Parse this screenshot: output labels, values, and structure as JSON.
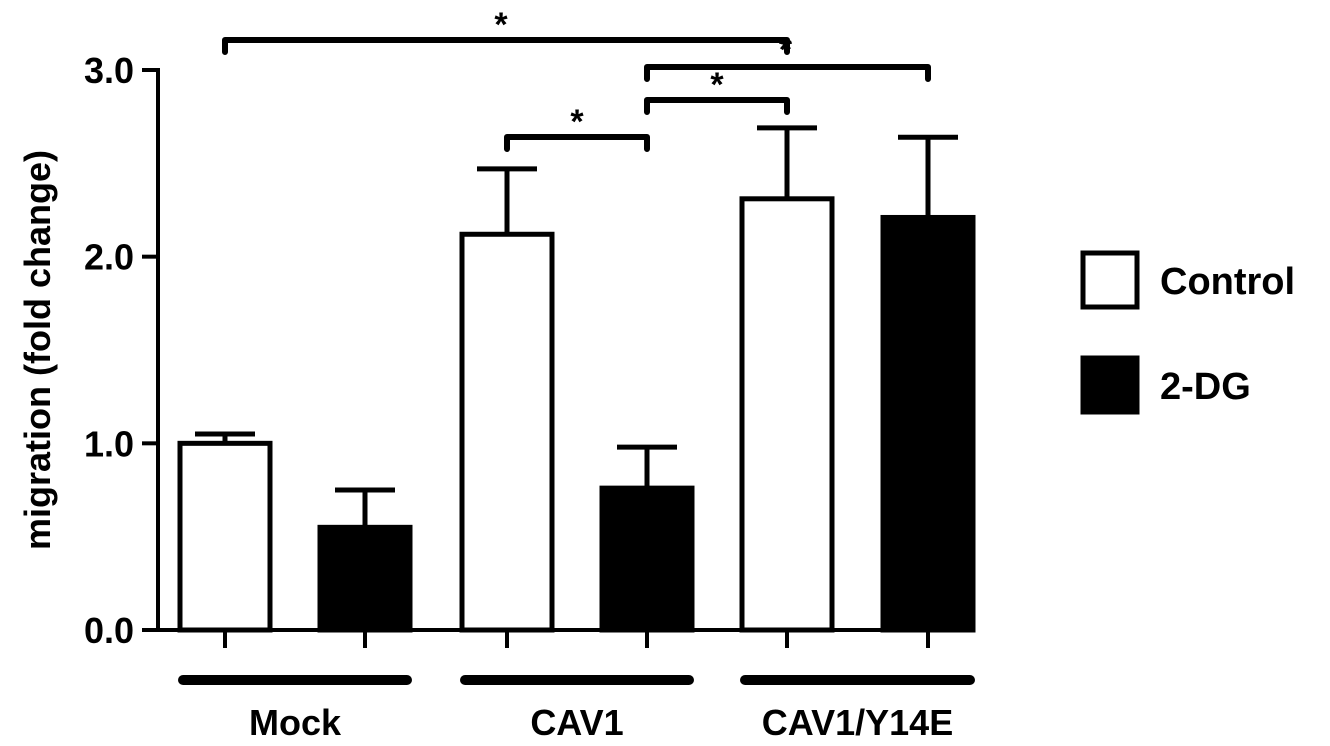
{
  "chart_data": {
    "type": "bar",
    "title": "",
    "xlabel": "",
    "ylabel": "migration (fold change)",
    "ylim": [
      0,
      3.0
    ],
    "yticks": [
      0.0,
      1.0,
      2.0,
      3.0
    ],
    "ytick_labels": [
      "0.0",
      "1.0",
      "2.0",
      "3.0"
    ],
    "grid": false,
    "legend_position": "right",
    "groups": [
      "Mock",
      "CAV1",
      "CAV1/Y14E"
    ],
    "series": [
      {
        "name": "Control",
        "fill": "#ffffff",
        "values": [
          1.0,
          2.12,
          2.31
        ],
        "errors": [
          0.05,
          0.35,
          0.38
        ]
      },
      {
        "name": "2-DG",
        "fill": "#000000",
        "values": [
          0.55,
          0.76,
          2.21
        ],
        "errors": [
          0.2,
          0.22,
          0.43
        ]
      }
    ],
    "significance": [
      {
        "from": [
          0,
          0
        ],
        "to": [
          2,
          0
        ],
        "label": "*"
      },
      {
        "from": [
          1,
          0
        ],
        "to": [
          1,
          1
        ],
        "label": "*"
      },
      {
        "from": [
          1,
          1
        ],
        "to": [
          2,
          0
        ],
        "label": "*"
      },
      {
        "from": [
          1,
          1
        ],
        "to": [
          2,
          1
        ],
        "label": "*"
      }
    ]
  }
}
